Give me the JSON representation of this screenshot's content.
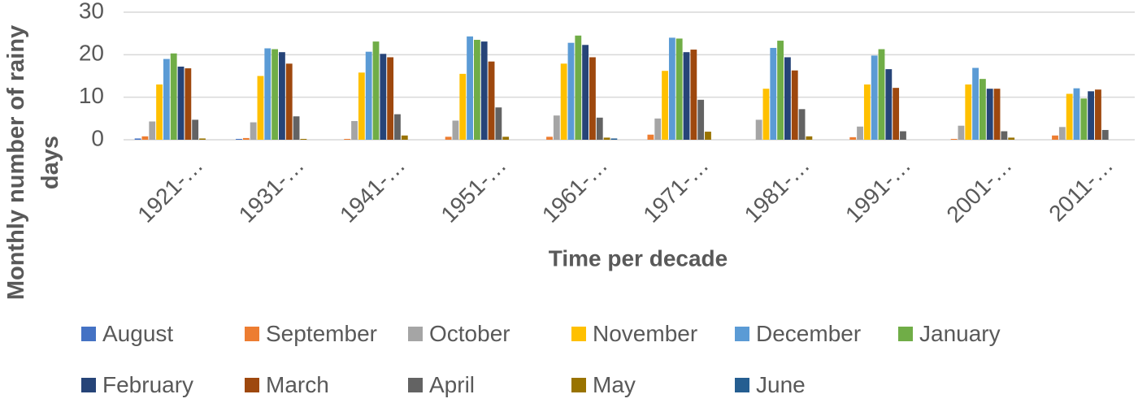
{
  "chart_data": {
    "type": "bar",
    "x_label": "Time per decade",
    "y_label": "Monthly number of rainy days",
    "categories": [
      "1921-…",
      "1931-…",
      "1941-…",
      "1951-…",
      "1961-…",
      "1971-…",
      "1981-…",
      "1991-…",
      "2001-…",
      "2011-…"
    ],
    "series": [
      {
        "name": "August",
        "color": "#4472c4",
        "values": [
          0.3,
          0.2,
          0,
          0,
          0,
          0,
          0,
          0,
          0,
          0
        ]
      },
      {
        "name": "September",
        "color": "#ed7d31",
        "values": [
          0.8,
          0.4,
          0.2,
          0.7,
          0.7,
          1.2,
          0,
          0.6,
          0.2,
          1
        ]
      },
      {
        "name": "October",
        "color": "#a5a5a5",
        "values": [
          4.3,
          4.1,
          4.4,
          4.5,
          5.7,
          5,
          4.7,
          3.1,
          3.3,
          3
        ]
      },
      {
        "name": "November",
        "color": "#ffc000",
        "values": [
          13,
          15,
          15.8,
          15.5,
          17.9,
          16.2,
          12,
          13,
          13,
          10.8
        ]
      },
      {
        "name": "December",
        "color": "#5b9bd5",
        "values": [
          19,
          21.5,
          20.7,
          24.3,
          22.8,
          24,
          21.6,
          19.8,
          16.9,
          12.1
        ]
      },
      {
        "name": "January",
        "color": "#70ad47",
        "values": [
          20.3,
          21.3,
          23.1,
          23.5,
          24.5,
          23.8,
          23.3,
          21.3,
          14.3,
          9.7
        ]
      },
      {
        "name": "February",
        "color": "#264478",
        "values": [
          17.2,
          20.6,
          20.2,
          23.1,
          22.3,
          20.6,
          19.4,
          16.6,
          12,
          11.4
        ]
      },
      {
        "name": "March",
        "color": "#9e480e",
        "values": [
          16.8,
          17.9,
          19.4,
          18.4,
          19.4,
          21.2,
          16.3,
          12.2,
          12,
          11.8
        ]
      },
      {
        "name": "April",
        "color": "#636363",
        "values": [
          4.7,
          5.5,
          6,
          7.6,
          5.2,
          9.4,
          7.2,
          2,
          2,
          2.3
        ]
      },
      {
        "name": "May",
        "color": "#997300",
        "values": [
          0.3,
          0.2,
          1,
          0.7,
          0.5,
          1.9,
          0.8,
          0,
          0.5,
          0
        ]
      },
      {
        "name": "June",
        "color": "#255e91",
        "values": [
          0,
          0,
          0,
          0,
          0.3,
          0,
          0,
          0,
          0,
          0
        ]
      }
    ],
    "ylim": [
      0,
      30
    ],
    "yticks": [
      0,
      10,
      20,
      30
    ],
    "grid": true
  }
}
